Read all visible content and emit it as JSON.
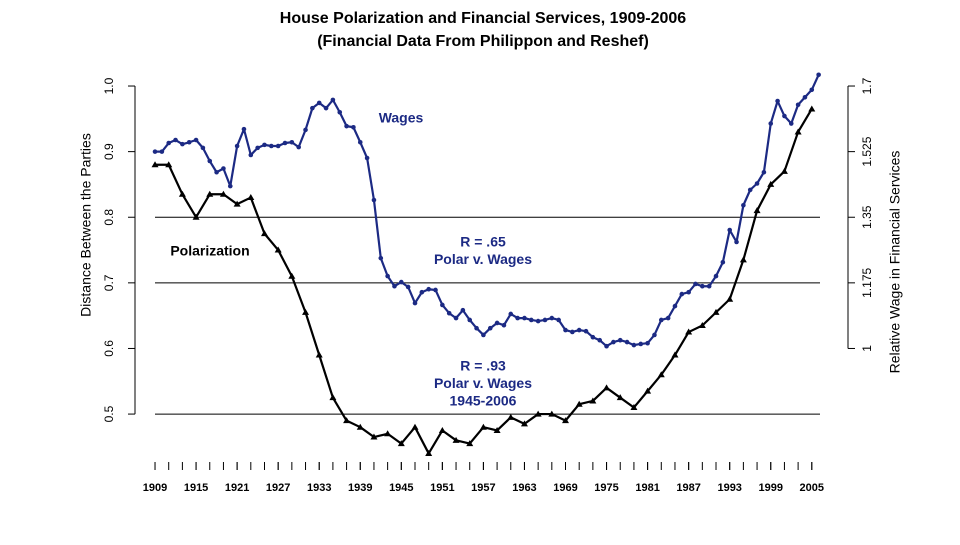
{
  "chart_data": {
    "type": "line",
    "title": "House Polarization and Financial Services, 1909-2006",
    "subtitle": "(Financial Data From Philippon and Reshef)",
    "ylabel": "Distance Between the Parties",
    "y2label": "Relative Wage in Financial Services",
    "xlim": [
      1906,
      2010
    ],
    "ylim": [
      0.43,
      1.02
    ],
    "y2lim": [
      0.7025,
      1.735
    ],
    "xticks": [
      1909,
      1915,
      1921,
      1927,
      1933,
      1939,
      1945,
      1951,
      1957,
      1963,
      1969,
      1975,
      1981,
      1987,
      1993,
      1999,
      2005
    ],
    "xminorticks": [
      1909,
      1911,
      1913,
      1915,
      1917,
      1919,
      1921,
      1923,
      1925,
      1927,
      1929,
      1931,
      1933,
      1935,
      1937,
      1939,
      1941,
      1943,
      1945,
      1947,
      1949,
      1951,
      1953,
      1955,
      1957,
      1959,
      1961,
      1963,
      1965,
      1967,
      1969,
      1971,
      1973,
      1975,
      1977,
      1979,
      1981,
      1983,
      1985,
      1987,
      1989,
      1991,
      1993,
      1995,
      1997,
      1999,
      2001,
      2003,
      2005
    ],
    "yticks": [
      {
        "value": 0.5,
        "label": "0.5"
      },
      {
        "value": 0.6,
        "label": "0.6"
      },
      {
        "value": 0.7,
        "label": "0.7"
      },
      {
        "value": 0.8,
        "label": "0.8"
      },
      {
        "value": 0.9,
        "label": "0.9"
      },
      {
        "value": 1.0,
        "label": "1.0"
      }
    ],
    "y2ticks": [
      1,
      1.175,
      1.35,
      1.525,
      1.7
    ],
    "hlines": [
      0.5,
      0.7,
      0.8
    ],
    "series": [
      {
        "name": "Polarization",
        "color": "#000000",
        "marker": "triangle",
        "x": [
          1909,
          1911,
          1913,
          1915,
          1917,
          1919,
          1921,
          1923,
          1925,
          1927,
          1929,
          1931,
          1933,
          1935,
          1937,
          1939,
          1941,
          1943,
          1945,
          1947,
          1949,
          1951,
          1953,
          1955,
          1957,
          1959,
          1961,
          1963,
          1965,
          1967,
          1969,
          1971,
          1973,
          1975,
          1977,
          1979,
          1981,
          1983,
          1985,
          1987,
          1989,
          1991,
          1993,
          1995,
          1997,
          1999,
          2001,
          2003,
          2005
        ],
        "values": [
          0.88,
          0.88,
          0.835,
          0.8,
          0.835,
          0.835,
          0.82,
          0.83,
          0.775,
          0.75,
          0.71,
          0.655,
          0.59,
          0.525,
          0.49,
          0.48,
          0.465,
          0.47,
          0.455,
          0.48,
          0.44,
          0.475,
          0.46,
          0.455,
          0.48,
          0.475,
          0.495,
          0.485,
          0.5,
          0.5,
          0.49,
          0.515,
          0.52,
          0.54,
          0.525,
          0.51,
          0.535,
          0.56,
          0.59,
          0.625,
          0.635,
          0.655,
          0.675,
          0.735,
          0.81,
          0.85,
          0.87,
          0.93,
          0.965
        ]
      },
      {
        "name": "Wages",
        "color": "#1c2a84",
        "marker": "dot",
        "axis": "y2",
        "x": [
          1909,
          1910,
          1911,
          1912,
          1913,
          1914,
          1915,
          1916,
          1917,
          1918,
          1919,
          1920,
          1921,
          1922,
          1923,
          1924,
          1925,
          1926,
          1927,
          1928,
          1929,
          1930,
          1931,
          1932,
          1933,
          1934,
          1935,
          1936,
          1937,
          1938,
          1939,
          1940,
          1941,
          1942,
          1943,
          1944,
          1945,
          1946,
          1947,
          1948,
          1949,
          1950,
          1951,
          1952,
          1953,
          1954,
          1955,
          1956,
          1957,
          1958,
          1959,
          1960,
          1961,
          1962,
          1963,
          1964,
          1965,
          1966,
          1967,
          1968,
          1969,
          1970,
          1971,
          1972,
          1973,
          1974,
          1975,
          1976,
          1977,
          1978,
          1979,
          1980,
          1981,
          1982,
          1983,
          1984,
          1985,
          1986,
          1987,
          1988,
          1989,
          1990,
          1991,
          1992,
          1993,
          1994,
          1995,
          1996,
          1997,
          1998,
          1999,
          2000,
          2001,
          2002,
          2003,
          2004,
          2005,
          2006
        ],
        "values": [
          1.525,
          1.525,
          1.548,
          1.556,
          1.545,
          1.55,
          1.556,
          1.535,
          1.5,
          1.47,
          1.48,
          1.433,
          1.54,
          1.585,
          1.516,
          1.535,
          1.543,
          1.54,
          1.54,
          1.548,
          1.55,
          1.537,
          1.583,
          1.641,
          1.655,
          1.641,
          1.663,
          1.63,
          1.593,
          1.59,
          1.55,
          1.508,
          1.396,
          1.241,
          1.193,
          1.166,
          1.177,
          1.164,
          1.121,
          1.15,
          1.158,
          1.156,
          1.116,
          1.094,
          1.081,
          1.102,
          1.076,
          1.054,
          1.036,
          1.054,
          1.068,
          1.062,
          1.092,
          1.081,
          1.081,
          1.076,
          1.073,
          1.076,
          1.081,
          1.076,
          1.049,
          1.044,
          1.049,
          1.046,
          1.03,
          1.022,
          1.006,
          1.017,
          1.022,
          1.017,
          1.009,
          1.012,
          1.014,
          1.036,
          1.076,
          1.081,
          1.113,
          1.145,
          1.15,
          1.172,
          1.166,
          1.166,
          1.193,
          1.23,
          1.316,
          1.284,
          1.382,
          1.423,
          1.44,
          1.47,
          1.6,
          1.66,
          1.62,
          1.6,
          1.65,
          1.67,
          1.69,
          1.73
        ]
      }
    ],
    "annotations": [
      {
        "lines": [
          "Wages"
        ],
        "color": "#1c2a84"
      },
      {
        "lines": [
          "Polarization"
        ],
        "color": "#000000"
      },
      {
        "lines": [
          "R = .65",
          "Polar v. Wages"
        ],
        "color": "#1c2a84"
      },
      {
        "lines": [
          "R = .93",
          "Polar v. Wages",
          "1945-2006"
        ],
        "color": "#1c2a84"
      }
    ]
  }
}
